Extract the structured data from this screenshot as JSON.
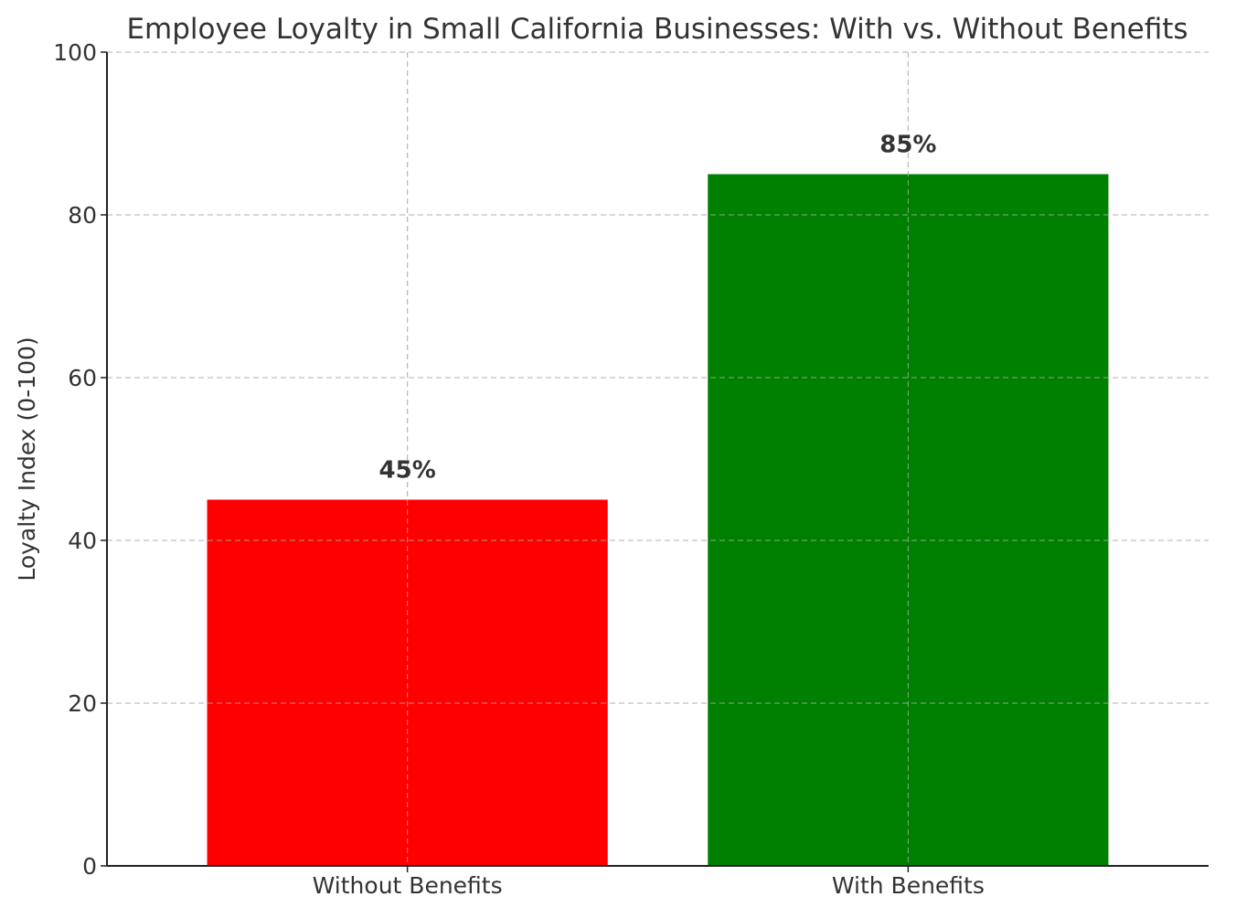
{
  "chart_data": {
    "type": "bar",
    "title": "Employee Loyalty in Small California Businesses: With vs. Without Benefits",
    "xlabel": "",
    "ylabel": "Loyalty Index (0-100)",
    "categories": [
      "Without Benefits",
      "With Benefits"
    ],
    "values": [
      45,
      85
    ],
    "data_labels": [
      "45%",
      "85%"
    ],
    "colors": [
      "#ff0000",
      "#008000"
    ],
    "ylim": [
      0,
      100
    ],
    "yticks": [
      0,
      20,
      40,
      60,
      80,
      100
    ],
    "grid": true
  }
}
